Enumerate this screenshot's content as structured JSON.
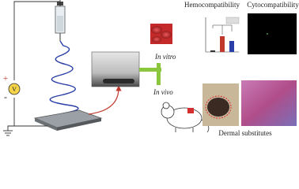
{
  "circuit": {
    "plus": "+",
    "minus": "-",
    "meter": "V"
  },
  "labels": {
    "in_vitro": "In vitro",
    "in_vivo": "In vivo",
    "hemocompatibility": "Hemocompatibility",
    "cytocompatibility": "Cytocompatibility",
    "dermal": "Dermal substitutes"
  }
}
